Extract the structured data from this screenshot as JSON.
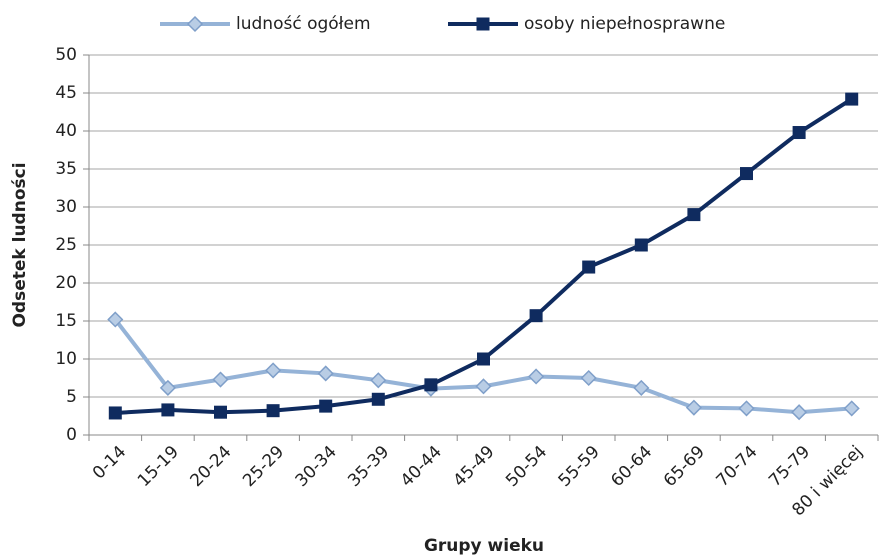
{
  "chart_data": {
    "type": "line",
    "xlabel": "Grupy wieku",
    "ylabel": "Odsetek ludności",
    "categories": [
      "0-14",
      "15-19",
      "20-24",
      "25-29",
      "30-34",
      "35-39",
      "40-44",
      "45-49",
      "50-54",
      "55-59",
      "60-64",
      "65-69",
      "70-74",
      "75-79",
      "80 i więcej"
    ],
    "series": [
      {
        "name": "ludność ogółem",
        "color": "#95b3d7",
        "marker": "diamond",
        "values": [
          15.2,
          6.2,
          7.3,
          8.5,
          8.1,
          7.2,
          6.1,
          6.4,
          7.7,
          7.5,
          6.2,
          3.6,
          3.5,
          3.0,
          3.5
        ]
      },
      {
        "name": "osoby niepełnosprawne",
        "color": "#0f2b5f",
        "marker": "square",
        "values": [
          2.9,
          3.3,
          3.0,
          3.2,
          3.8,
          4.7,
          6.6,
          10.0,
          15.7,
          22.1,
          25.0,
          29.0,
          34.4,
          39.8,
          44.2
        ]
      }
    ],
    "ylim": [
      0,
      50
    ],
    "yticks": [
      0,
      5,
      10,
      15,
      20,
      25,
      30,
      35,
      40,
      45,
      50
    ],
    "grid": true,
    "legend": "top"
  }
}
